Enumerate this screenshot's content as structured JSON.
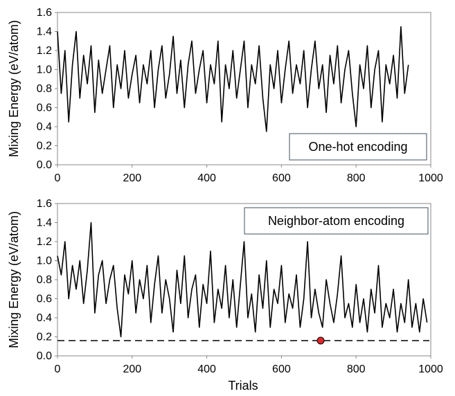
{
  "figure": {
    "y_axis_label": "Mixing Energy (eV/atom)",
    "x_axis_label": "Trials"
  },
  "chart_data": [
    {
      "type": "line",
      "title": "",
      "annotation": "One-hot encoding",
      "annotation_placement": "bottom-right",
      "xlabel": "",
      "ylabel": "Mixing Energy (eV/atom)",
      "xlim": [
        0,
        1000
      ],
      "ylim": [
        0,
        1.6
      ],
      "xticks": [
        "0",
        "200",
        "400",
        "600",
        "800",
        "1000"
      ],
      "yticks": [
        "0.0",
        "0.2",
        "0.4",
        "0.6",
        "0.8",
        "1.0",
        "1.2",
        "1.4",
        "1.6"
      ],
      "grid": false,
      "series": [
        {
          "color": "#000000",
          "x": [
            0,
            10,
            20,
            30,
            40,
            50,
            60,
            70,
            80,
            90,
            100,
            110,
            120,
            130,
            140,
            150,
            160,
            170,
            180,
            190,
            200,
            210,
            220,
            230,
            240,
            250,
            260,
            270,
            280,
            290,
            300,
            310,
            320,
            330,
            340,
            350,
            360,
            370,
            380,
            390,
            400,
            410,
            420,
            430,
            440,
            450,
            460,
            470,
            480,
            490,
            500,
            510,
            520,
            530,
            540,
            550,
            560,
            570,
            580,
            590,
            600,
            610,
            620,
            630,
            640,
            650,
            660,
            670,
            680,
            690,
            700,
            710,
            720,
            730,
            740,
            750,
            760,
            770,
            780,
            790,
            800,
            810,
            820,
            830,
            840,
            850,
            860,
            870,
            880,
            890,
            900,
            910,
            920,
            930,
            940
          ],
          "y": [
            1.4,
            0.75,
            1.2,
            0.45,
            1.05,
            1.4,
            0.7,
            1.15,
            0.85,
            1.25,
            0.55,
            1.1,
            0.75,
            1.0,
            1.25,
            0.6,
            1.05,
            0.8,
            1.2,
            0.7,
            0.95,
            1.15,
            0.65,
            1.05,
            0.85,
            1.2,
            0.6,
            1.0,
            1.25,
            0.7,
            0.95,
            1.35,
            0.75,
            1.1,
            0.6,
            1.05,
            1.3,
            0.75,
            1.0,
            1.2,
            0.65,
            1.05,
            0.85,
            1.3,
            0.45,
            1.05,
            0.8,
            1.2,
            0.7,
            1.0,
            1.3,
            0.6,
            1.05,
            0.85,
            1.25,
            0.7,
            0.35,
            1.05,
            0.8,
            1.2,
            0.65,
            1.0,
            1.3,
            0.75,
            1.05,
            0.85,
            1.2,
            0.6,
            1.0,
            1.3,
            0.8,
            1.05,
            0.55,
            1.15,
            0.85,
            1.25,
            0.65,
            1.0,
            1.2,
            0.75,
            0.4,
            1.05,
            0.8,
            1.25,
            0.6,
            1.0,
            1.2,
            0.45,
            1.05,
            0.85,
            1.15,
            0.7,
            1.45,
            0.75,
            1.05
          ]
        }
      ]
    },
    {
      "type": "line",
      "title": "",
      "annotation": "Neighbor-atom encoding",
      "annotation_placement": "top-right",
      "xlabel": "Trials",
      "ylabel": "Mixing Energy (eV/atom)",
      "xlim": [
        0,
        1000
      ],
      "ylim": [
        0,
        1.6
      ],
      "xticks": [
        "0",
        "200",
        "400",
        "600",
        "800",
        "1000"
      ],
      "yticks": [
        "0.0",
        "0.2",
        "0.4",
        "0.6",
        "0.8",
        "1.0",
        "1.2",
        "1.4",
        "1.6"
      ],
      "grid": false,
      "reference_line": {
        "y": 0.16,
        "style": "dashed",
        "color": "#000000"
      },
      "highlight_point": {
        "x": 705,
        "y": 0.16,
        "color": "#e0282a"
      },
      "series": [
        {
          "color": "#000000",
          "x": [
            0,
            10,
            20,
            30,
            40,
            50,
            60,
            70,
            80,
            90,
            100,
            110,
            120,
            130,
            140,
            150,
            160,
            170,
            180,
            190,
            200,
            210,
            220,
            230,
            240,
            250,
            260,
            270,
            280,
            290,
            300,
            310,
            320,
            330,
            340,
            350,
            360,
            370,
            380,
            390,
            400,
            410,
            420,
            430,
            440,
            450,
            460,
            470,
            480,
            490,
            500,
            510,
            520,
            530,
            540,
            550,
            560,
            570,
            580,
            590,
            600,
            610,
            620,
            630,
            640,
            650,
            660,
            670,
            680,
            690,
            700,
            710,
            720,
            730,
            740,
            750,
            760,
            770,
            780,
            790,
            800,
            810,
            820,
            830,
            840,
            850,
            860,
            870,
            880,
            890,
            900,
            910,
            920,
            930,
            940,
            950,
            960,
            970,
            980,
            990
          ],
          "y": [
            1.05,
            0.85,
            1.2,
            0.6,
            0.95,
            0.7,
            1.0,
            0.55,
            0.9,
            1.4,
            0.45,
            0.85,
            1.0,
            0.55,
            0.8,
            0.95,
            0.5,
            0.2,
            0.85,
            0.65,
            1.0,
            0.45,
            0.8,
            0.6,
            0.95,
            0.35,
            0.75,
            1.05,
            0.45,
            0.8,
            0.6,
            0.25,
            0.9,
            0.55,
            1.05,
            0.4,
            0.7,
            0.85,
            0.3,
            0.75,
            0.55,
            1.1,
            0.35,
            0.7,
            0.5,
            0.95,
            0.4,
            0.8,
            0.3,
            0.75,
            1.2,
            0.4,
            0.65,
            0.25,
            0.85,
            0.5,
            1.0,
            0.3,
            0.7,
            0.55,
            0.95,
            0.35,
            0.65,
            0.5,
            0.85,
            0.3,
            0.6,
            1.2,
            0.4,
            0.7,
            0.45,
            0.3,
            0.8,
            0.55,
            0.35,
            0.65,
            1.05,
            0.4,
            0.55,
            0.3,
            0.75,
            0.35,
            0.6,
            0.25,
            0.7,
            0.45,
            0.95,
            0.3,
            0.55,
            0.4,
            0.7,
            0.25,
            0.55,
            0.35,
            0.8,
            0.3,
            0.55,
            0.25,
            0.6,
            0.35
          ]
        }
      ]
    }
  ]
}
